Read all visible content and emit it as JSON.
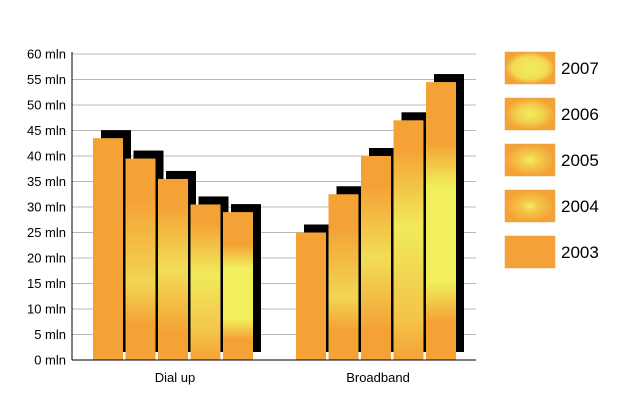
{
  "chart_data": {
    "type": "bar",
    "categories": [
      "Dial up",
      "Broadband"
    ],
    "series": [
      {
        "name": "2003",
        "values": [
          43.5,
          25
        ],
        "style": "flat"
      },
      {
        "name": "2004",
        "values": [
          39.5,
          32.5
        ],
        "style": "glow-low"
      },
      {
        "name": "2005",
        "values": [
          35.5,
          40
        ],
        "style": "glow-mid"
      },
      {
        "name": "2006",
        "values": [
          30.5,
          47
        ],
        "style": "glow-high"
      },
      {
        "name": "2007",
        "values": [
          29,
          54.5
        ],
        "style": "glow-top"
      }
    ],
    "legend_order": [
      "2007",
      "2006",
      "2005",
      "2004",
      "2003"
    ],
    "y_ticks": [
      {
        "value": 0,
        "label": "0 mln"
      },
      {
        "value": 5,
        "label": "5 mln"
      },
      {
        "value": 10,
        "label": "10 mln"
      },
      {
        "value": 15,
        "label": "15 mln"
      },
      {
        "value": 20,
        "label": "20 mln"
      },
      {
        "value": 25,
        "label": "25 mln"
      },
      {
        "value": 30,
        "label": "30 mln"
      },
      {
        "value": 35,
        "label": "35 mln"
      },
      {
        "value": 40,
        "label": "40 mln"
      },
      {
        "value": 45,
        "label": "45 mln"
      },
      {
        "value": 50,
        "label": "50 mln"
      },
      {
        "value": 55,
        "label": "55 mln"
      },
      {
        "value": 60,
        "label": "60 mln"
      }
    ],
    "ylim": [
      0,
      60
    ],
    "grid": true,
    "legend_position": "right",
    "colors": {
      "bar_base": "#f4a236",
      "bar_glow": "#f1ef5c",
      "shadow": "#000000",
      "grid": "#b8b8b8"
    }
  }
}
